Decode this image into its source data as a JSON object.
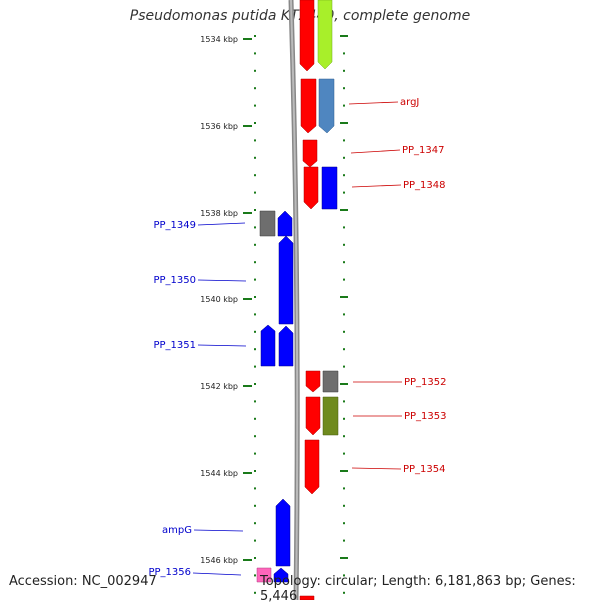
{
  "title": "Pseudomonas putida KT2440, complete genome",
  "accession": "Accession: NC_002947",
  "footer": "Topology: circular; Length: 6,181,863 bp; Genes: 5,446",
  "kbp_labels": [
    "1534 kbp",
    "1536 kbp",
    "1538 kbp",
    "1540 kbp",
    "1542 kbp",
    "1544 kbp",
    "1546 kbp"
  ],
  "gene_labels_right": [
    "argJ",
    "PP_1347",
    "PP_1348",
    "PP_1352",
    "PP_1353",
    "PP_1354"
  ],
  "gene_labels_left": [
    "PP_1349",
    "PP_1350",
    "PP_1351",
    "ampG",
    "PP_1356"
  ],
  "colors": {
    "forward": "#ff0000",
    "reverse": "#0000ff",
    "gray": "#6e6e6e",
    "lime": "#a8ef2a",
    "steelblue": "#4f86c0",
    "olive": "#6f8a1e",
    "pink": "#ff66bb",
    "backbone": "#888888",
    "tick": "#1a7a1a"
  }
}
